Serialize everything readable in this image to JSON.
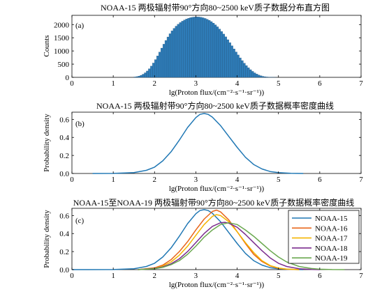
{
  "chart_data": [
    {
      "type": "bar",
      "panel": "(a)",
      "title": "NOAA-15 两极辐射带90°方向80~2500 keV质子数据分布直方图",
      "xlabel": "lg(Proton flux/(cm⁻²·s⁻¹·sr⁻¹))",
      "ylabel": "Counts",
      "xlim": [
        0,
        7
      ],
      "ylim": [
        0,
        2350
      ],
      "xticks": [
        "0",
        "1",
        "2",
        "3",
        "4",
        "5",
        "6",
        "7"
      ],
      "yticks": [
        "0",
        "500",
        "1000",
        "1500",
        "2000"
      ],
      "bar_color": "#2e7cb8",
      "bin_width": 0.05,
      "x": [
        1.525,
        1.575,
        1.625,
        1.675,
        1.725,
        1.775,
        1.825,
        1.875,
        1.925,
        1.975,
        2.025,
        2.075,
        2.125,
        2.175,
        2.225,
        2.275,
        2.325,
        2.375,
        2.425,
        2.475,
        2.525,
        2.575,
        2.625,
        2.675,
        2.725,
        2.775,
        2.825,
        2.875,
        2.925,
        2.975,
        3.025,
        3.075,
        3.125,
        3.175,
        3.225,
        3.275,
        3.325,
        3.375,
        3.425,
        3.475,
        3.525,
        3.575,
        3.625,
        3.675,
        3.725,
        3.775,
        3.825,
        3.875,
        3.925,
        3.975,
        4.025,
        4.075,
        4.125,
        4.175,
        4.225,
        4.275,
        4.325,
        4.375,
        4.425,
        4.475,
        4.525,
        4.575,
        4.625,
        4.675,
        4.725,
        4.775,
        4.825,
        4.875,
        4.925
      ],
      "values": [
        15,
        28,
        48,
        78,
        118,
        172,
        240,
        325,
        426,
        542,
        672,
        812,
        958,
        1108,
        1256,
        1398,
        1530,
        1652,
        1760,
        1856,
        1940,
        2012,
        2075,
        2128,
        2172,
        2210,
        2240,
        2262,
        2278,
        2286,
        2290,
        2286,
        2276,
        2258,
        2232,
        2200,
        2160,
        2112,
        2056,
        1990,
        1915,
        1830,
        1738,
        1640,
        1535,
        1426,
        1312,
        1196,
        1078,
        962,
        848,
        738,
        634,
        536,
        446,
        364,
        290,
        226,
        170,
        124,
        86,
        58,
        38,
        24,
        14,
        8,
        5,
        3,
        1
      ]
    },
    {
      "type": "line",
      "panel": "(b)",
      "title": "NOAA-15 两极辐射带90°方向80~2500 keV质子数据概率密度曲线",
      "xlabel": "lg(Proton flux/(cm⁻²·s⁻¹·sr⁻¹))",
      "ylabel": "Probability density",
      "xlim": [
        0,
        7
      ],
      "ylim": [
        0,
        0.68
      ],
      "xticks": [
        "0",
        "1",
        "2",
        "3",
        "4",
        "5",
        "6",
        "7"
      ],
      "yticks": [
        "0.0",
        "0.2",
        "0.4",
        "0.6"
      ],
      "series": [
        {
          "color": "#1f77b4",
          "x": [
            0.5,
            1.0,
            1.5,
            1.8,
            2.0,
            2.2,
            2.4,
            2.6,
            2.8,
            3.0,
            3.1,
            3.2,
            3.3,
            3.4,
            3.6,
            3.8,
            4.0,
            4.2,
            4.4,
            4.6,
            4.8,
            5.0,
            5.3,
            5.6
          ],
          "y": [
            0.0,
            0.001,
            0.01,
            0.035,
            0.07,
            0.14,
            0.24,
            0.37,
            0.51,
            0.62,
            0.655,
            0.665,
            0.655,
            0.625,
            0.53,
            0.41,
            0.29,
            0.18,
            0.1,
            0.05,
            0.022,
            0.009,
            0.002,
            0.0
          ]
        }
      ]
    },
    {
      "type": "line",
      "panel": "(c)",
      "title": "NOAA-15至NOAA-19 两极辐射带90°方向80~2500 keV质子数据概率密度曲线",
      "xlabel": "lg(Proton flux/(cm⁻²·s⁻¹·sr⁻¹))",
      "ylabel": "Probability density",
      "xlim": [
        0,
        7
      ],
      "ylim": [
        0,
        0.68
      ],
      "xticks": [
        "0",
        "1",
        "2",
        "3",
        "4",
        "5",
        "6",
        "7"
      ],
      "yticks": [
        "0.0",
        "0.2",
        "0.4",
        "0.6"
      ],
      "legend": "top-right",
      "series": [
        {
          "name": "NOAA-15",
          "color": "#1f77b4",
          "x": [
            0.0,
            1.0,
            1.5,
            1.8,
            2.0,
            2.2,
            2.4,
            2.6,
            2.8,
            3.0,
            3.1,
            3.2,
            3.3,
            3.4,
            3.6,
            3.8,
            4.0,
            4.2,
            4.4,
            4.6,
            4.8,
            5.0,
            5.3,
            5.6
          ],
          "y": [
            0.0,
            0.001,
            0.01,
            0.035,
            0.07,
            0.14,
            0.24,
            0.37,
            0.51,
            0.62,
            0.655,
            0.665,
            0.655,
            0.625,
            0.53,
            0.41,
            0.29,
            0.18,
            0.1,
            0.05,
            0.022,
            0.009,
            0.002,
            0.0
          ]
        },
        {
          "name": "NOAA-16",
          "color": "#e8651a",
          "x": [
            1.6,
            2.0,
            2.2,
            2.4,
            2.6,
            2.8,
            3.0,
            3.2,
            3.4,
            3.5,
            3.6,
            3.8,
            4.0,
            4.2,
            4.4,
            4.6,
            4.8,
            5.0,
            5.2,
            5.5
          ],
          "y": [
            0.0,
            0.02,
            0.05,
            0.11,
            0.2,
            0.31,
            0.44,
            0.56,
            0.645,
            0.66,
            0.64,
            0.55,
            0.42,
            0.29,
            0.17,
            0.09,
            0.04,
            0.015,
            0.005,
            0.0
          ]
        },
        {
          "name": "NOAA-17",
          "color": "#f4b400",
          "x": [
            1.6,
            2.0,
            2.2,
            2.4,
            2.6,
            2.8,
            3.0,
            3.2,
            3.4,
            3.5,
            3.6,
            3.8,
            4.0,
            4.2,
            4.4,
            4.6,
            4.8,
            5.0,
            5.2,
            5.5
          ],
          "y": [
            0.0,
            0.015,
            0.04,
            0.085,
            0.16,
            0.26,
            0.38,
            0.5,
            0.59,
            0.61,
            0.6,
            0.53,
            0.42,
            0.3,
            0.19,
            0.1,
            0.045,
            0.018,
            0.006,
            0.0
          ]
        },
        {
          "name": "NOAA-18",
          "color": "#7b2d8e",
          "x": [
            1.6,
            2.0,
            2.2,
            2.4,
            2.6,
            2.8,
            3.0,
            3.2,
            3.4,
            3.6,
            3.7,
            3.8,
            4.0,
            4.2,
            4.4,
            4.6,
            4.8,
            5.0,
            5.2,
            5.5,
            5.8,
            6.0
          ],
          "y": [
            0.0,
            0.012,
            0.03,
            0.065,
            0.12,
            0.2,
            0.3,
            0.4,
            0.48,
            0.52,
            0.525,
            0.515,
            0.47,
            0.39,
            0.3,
            0.21,
            0.13,
            0.07,
            0.035,
            0.01,
            0.002,
            0.0
          ]
        },
        {
          "name": "NOAA-19",
          "color": "#6aa84f",
          "x": [
            1.6,
            2.0,
            2.2,
            2.4,
            2.6,
            2.8,
            3.0,
            3.2,
            3.4,
            3.6,
            3.8,
            4.0,
            4.2,
            4.4,
            4.6,
            4.8,
            5.0,
            5.2,
            5.5,
            5.8,
            6.0,
            6.3,
            6.6
          ],
          "y": [
            0.0,
            0.01,
            0.025,
            0.055,
            0.1,
            0.17,
            0.26,
            0.36,
            0.44,
            0.5,
            0.52,
            0.5,
            0.44,
            0.37,
            0.29,
            0.21,
            0.14,
            0.085,
            0.035,
            0.012,
            0.005,
            0.001,
            0.0
          ]
        }
      ]
    }
  ]
}
